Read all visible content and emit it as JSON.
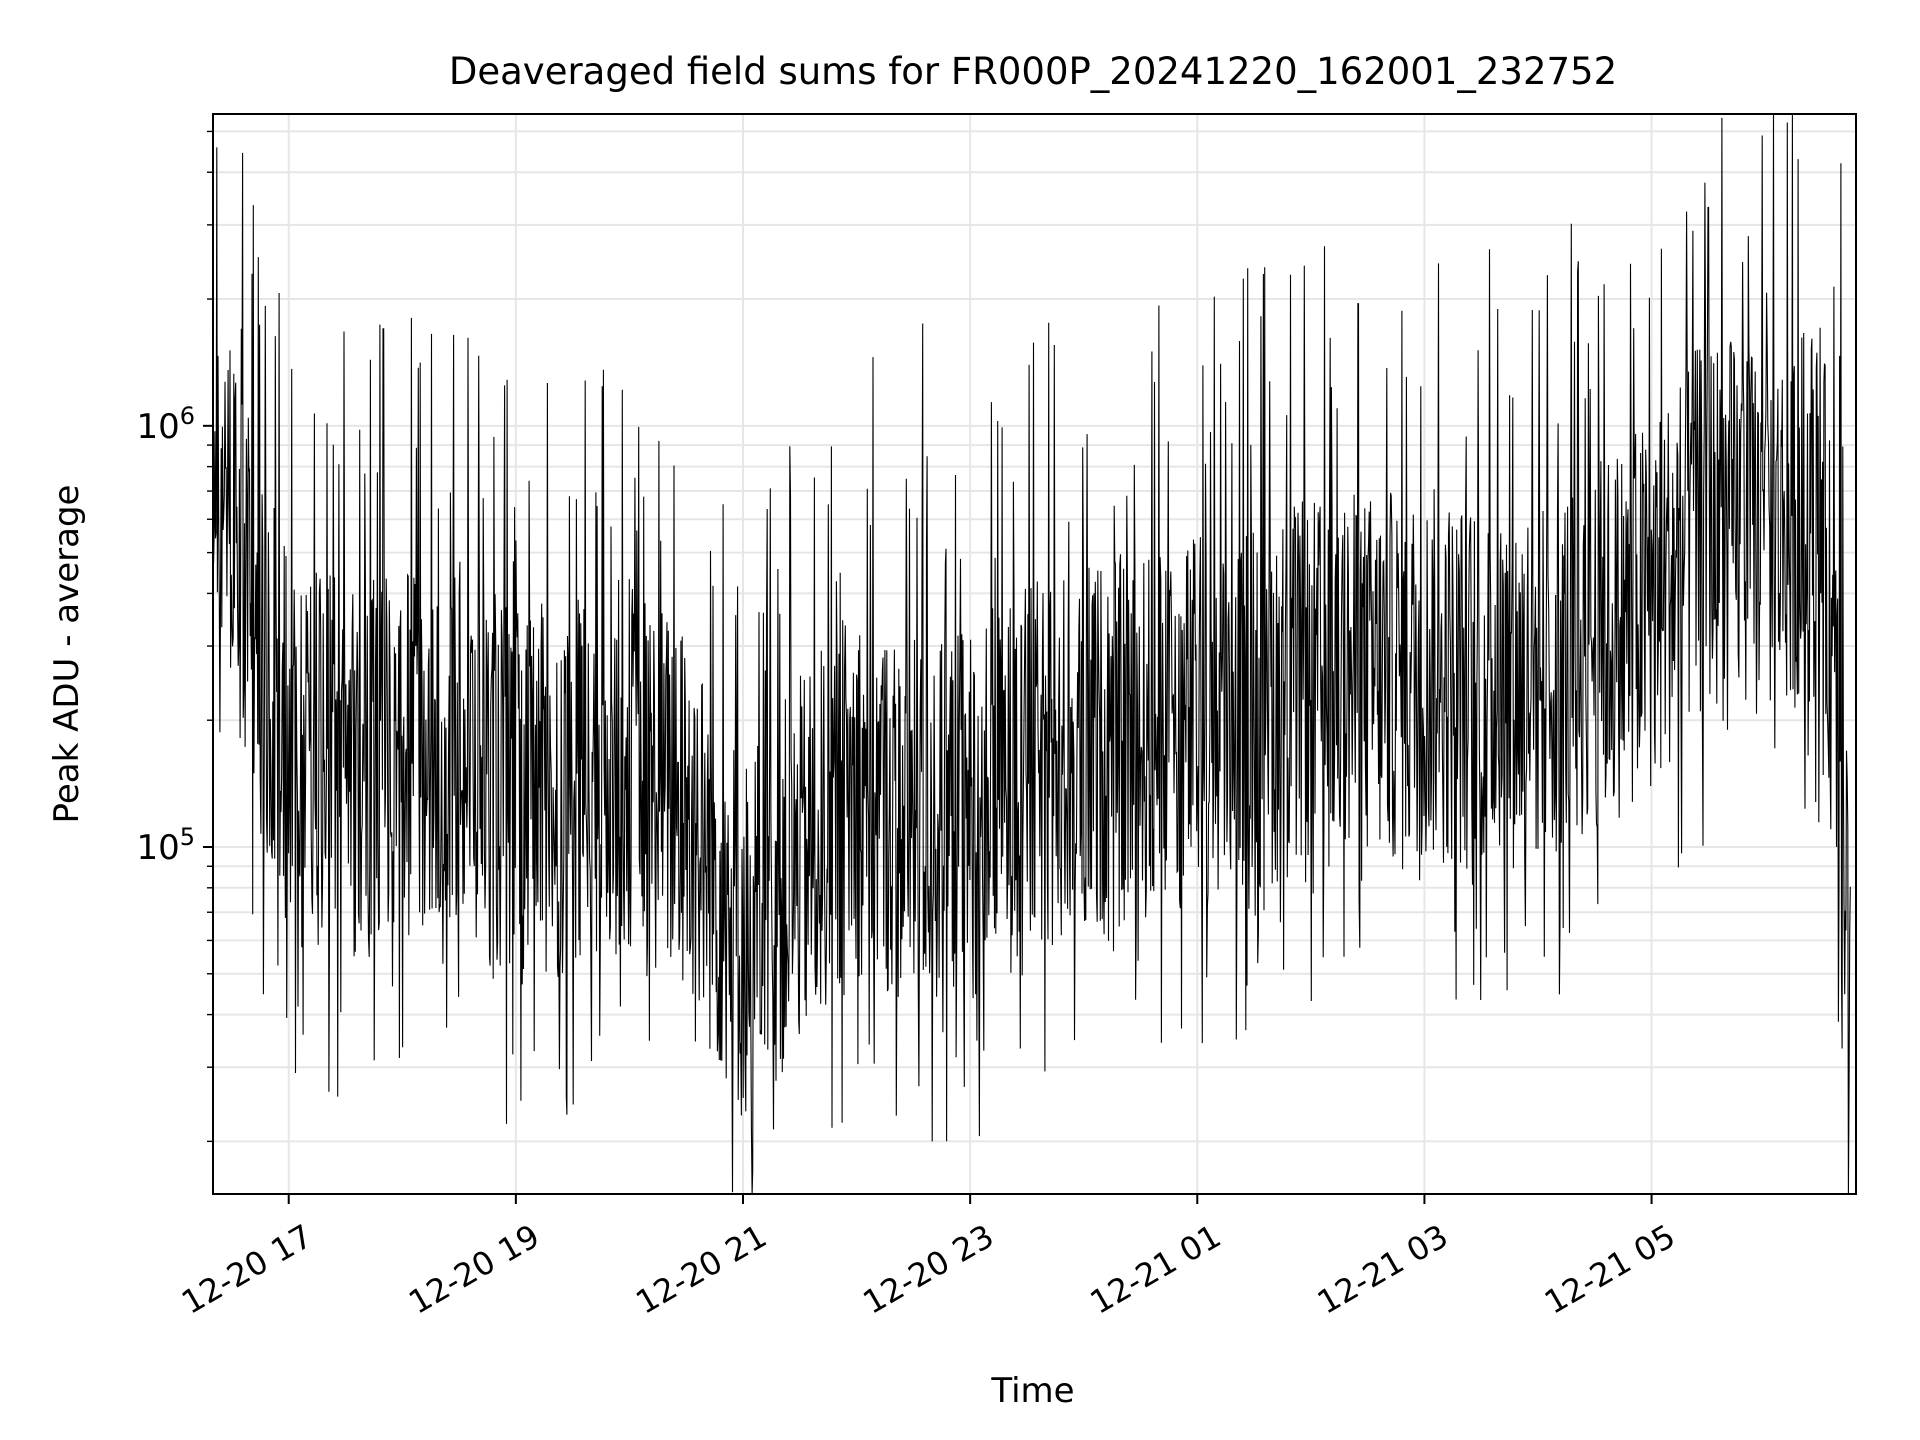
{
  "chart_data": {
    "type": "line",
    "title": "Deaveraged field sums for FR000P_20241220_162001_232752",
    "xlabel": "Time",
    "ylabel": "Peak ADU - average",
    "yscale": "log",
    "ylim": [
      15000,
      5500000
    ],
    "xlim": [
      "2024-12-20 16:20",
      "2024-12-21 06:48"
    ],
    "grid": true,
    "line_color": "#000000",
    "grid_color": "#e6e6e6",
    "x_ticks": [
      {
        "value": "2024-12-20 17:00",
        "label": "12-20 17"
      },
      {
        "value": "2024-12-20 19:00",
        "label": "12-20 19"
      },
      {
        "value": "2024-12-20 21:00",
        "label": "12-20 21"
      },
      {
        "value": "2024-12-20 23:00",
        "label": "12-20 23"
      },
      {
        "value": "2024-12-21 01:00",
        "label": "12-21 01"
      },
      {
        "value": "2024-12-21 03:00",
        "label": "12-21 03"
      },
      {
        "value": "2024-12-21 05:00",
        "label": "12-21 05"
      }
    ],
    "y_ticks": [
      {
        "value": 100000,
        "base": "10",
        "exp": "5"
      },
      {
        "value": 1000000,
        "base": "10",
        "exp": "6"
      }
    ],
    "series": [
      {
        "note": "dense noisy trace; approximate envelope of the visible signal",
        "points": [
          [
            "2024-12-20 16:20",
            750000
          ],
          [
            "2024-12-20 16:25",
            950000
          ],
          [
            "2024-12-20 16:30",
            600000
          ],
          [
            "2024-12-20 16:40",
            350000
          ],
          [
            "2024-12-20 17:00",
            180000
          ],
          [
            "2024-12-20 17:30",
            150000
          ],
          [
            "2024-12-20 18:00",
            160000
          ],
          [
            "2024-12-20 18:30",
            170000
          ],
          [
            "2024-12-20 19:00",
            130000
          ],
          [
            "2024-12-20 19:30",
            140000
          ],
          [
            "2024-12-20 20:00",
            160000
          ],
          [
            "2024-12-20 20:30",
            120000
          ],
          [
            "2024-12-20 21:00",
            60000
          ],
          [
            "2024-12-20 21:30",
            90000
          ],
          [
            "2024-12-20 22:00",
            140000
          ],
          [
            "2024-12-20 22:30",
            110000
          ],
          [
            "2024-12-20 23:00",
            120000
          ],
          [
            "2024-12-20 23:30",
            150000
          ],
          [
            "2024-12-21 00:00",
            170000
          ],
          [
            "2024-12-21 00:30",
            180000
          ],
          [
            "2024-12-21 01:00",
            200000
          ],
          [
            "2024-12-21 01:30",
            220000
          ],
          [
            "2024-12-21 02:00",
            240000
          ],
          [
            "2024-12-21 02:30",
            250000
          ],
          [
            "2024-12-21 03:00",
            260000
          ],
          [
            "2024-12-21 03:30",
            240000
          ],
          [
            "2024-12-21 04:00",
            250000
          ],
          [
            "2024-12-21 04:30",
            300000
          ],
          [
            "2024-12-21 05:00",
            380000
          ],
          [
            "2024-12-21 05:30",
            600000
          ],
          [
            "2024-12-21 06:00",
            550000
          ],
          [
            "2024-12-21 06:30",
            650000
          ],
          [
            "2024-12-21 06:45",
            60000
          ]
        ],
        "spikes": [
          [
            "2024-12-20 16:35",
            1700000
          ],
          [
            "2024-12-20 17:50",
            1700000
          ],
          [
            "2024-12-20 18:55",
            22000
          ],
          [
            "2024-12-20 21:05",
            17000
          ],
          [
            "2024-12-20 22:40",
            20000
          ],
          [
            "2024-12-20 22:35",
            1750000
          ],
          [
            "2024-12-21 02:25",
            1950000
          ],
          [
            "2024-12-21 05:30",
            3300000
          ],
          [
            "2024-12-21 06:40",
            4200000
          ]
        ]
      }
    ]
  }
}
